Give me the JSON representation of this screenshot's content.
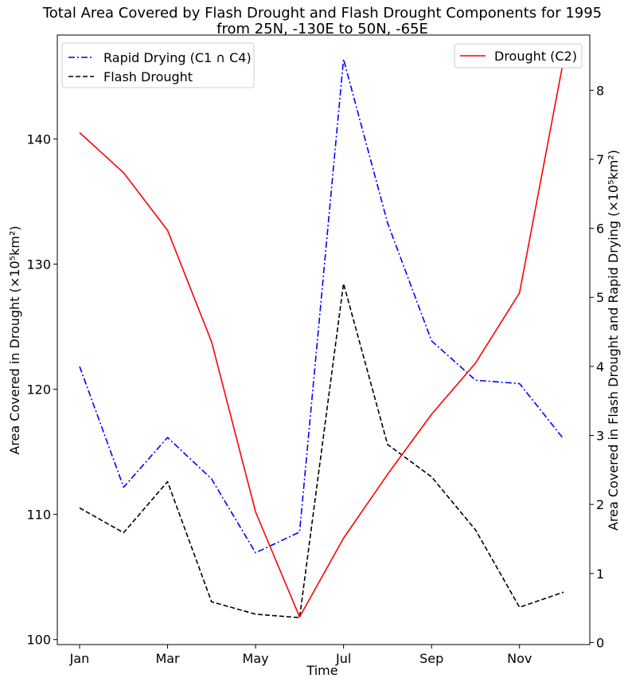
{
  "chart_data": {
    "type": "line",
    "title_line1": "Total Area Covered by Flash Drought and Flash Drought Components for 1995",
    "title_line2": "from 25N, -130E to 50N, -65E",
    "xlabel": "Time",
    "ylabel_left": "Area Covered in Drought (×10⁵km²)",
    "ylabel_right": "Area Covered in Flash Drought and Rapid Drying (×10⁵km²)",
    "x": [
      "Jan",
      "Feb",
      "Mar",
      "Apr",
      "May",
      "Jun",
      "Jul",
      "Aug",
      "Sep",
      "Oct",
      "Nov",
      "Dec"
    ],
    "x_tick_labels": [
      "Jan",
      "Mar",
      "May",
      "Jul",
      "Sep",
      "Nov"
    ],
    "x_ticks": [
      "Jan",
      "Mar",
      "May",
      "Jul",
      "Sep",
      "Nov"
    ],
    "ylim_left": [
      99.6,
      148.3
    ],
    "ylim_right": [
      -0.03,
      8.8
    ],
    "yticks_left": [
      100,
      110,
      120,
      130,
      140
    ],
    "yticks_right": [
      0,
      1,
      2,
      3,
      4,
      5,
      6,
      7,
      8
    ],
    "legend_left_placement": "top-left",
    "legend_right_placement": "top-right",
    "series": [
      {
        "name": "Rapid Drying (C1 ∩ C4)",
        "axis": "right",
        "color": "#0000ff",
        "style": "dashdot",
        "values": [
          4.0,
          2.25,
          2.97,
          2.37,
          1.3,
          1.6,
          8.45,
          6.08,
          4.37,
          3.8,
          3.75,
          2.95
        ]
      },
      {
        "name": "Flash Drought",
        "axis": "right",
        "color": "#000000",
        "style": "dashed",
        "values": [
          1.95,
          1.59,
          2.33,
          0.59,
          0.41,
          0.36,
          5.2,
          2.87,
          2.4,
          1.63,
          0.51,
          0.73
        ]
      },
      {
        "name": "Drought (C2)",
        "axis": "left",
        "color": "#ff0000",
        "style": "solid",
        "values": [
          140.5,
          137.3,
          132.7,
          123.8,
          110.2,
          101.8,
          108.1,
          113.2,
          118.0,
          122.1,
          127.7,
          146.3
        ]
      }
    ]
  }
}
